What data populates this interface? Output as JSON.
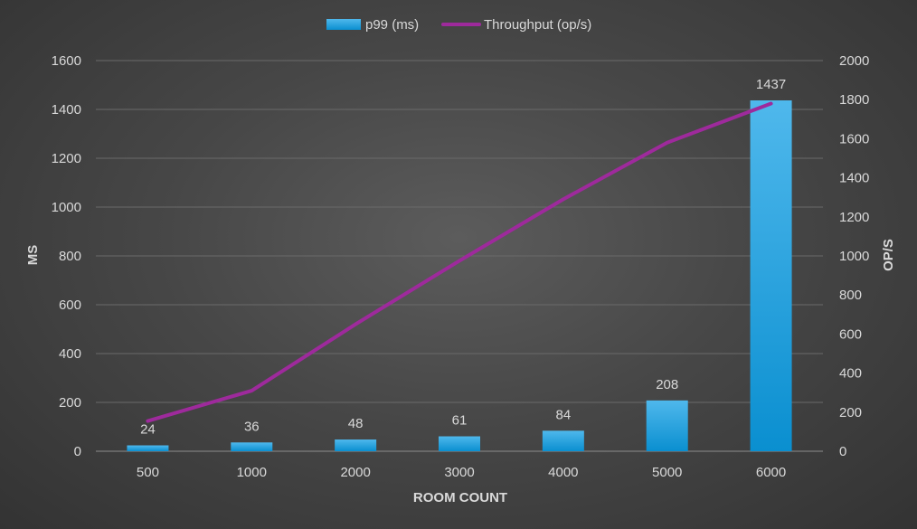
{
  "chart_data": {
    "type": "bar",
    "categories": [
      "500",
      "1000",
      "2000",
      "3000",
      "4000",
      "5000",
      "6000"
    ],
    "series": [
      {
        "name": "p99 (ms)",
        "type": "bar",
        "axis": "left",
        "color": "#1a9ad6",
        "values": [
          24,
          36,
          48,
          61,
          84,
          208,
          1437
        ],
        "data_labels": [
          "24",
          "36",
          "48",
          "61",
          "84",
          "208",
          "1437"
        ]
      },
      {
        "name": "Throughput (op/s)",
        "type": "line",
        "axis": "right",
        "color": "#9e2a9c",
        "values": [
          155,
          310,
          650,
          975,
          1290,
          1580,
          1780
        ]
      }
    ],
    "xlabel": "ROOM COUNT",
    "ylabel": "MS",
    "y2label": "OP/S",
    "ylim": [
      0,
      1600
    ],
    "yticks": [
      "0",
      "200",
      "400",
      "600",
      "800",
      "1000",
      "1200",
      "1400",
      "1600"
    ],
    "y2lim": [
      0,
      2000
    ],
    "y2ticks": [
      "0",
      "200",
      "400",
      "600",
      "800",
      "1000",
      "1200",
      "1400",
      "1600",
      "1800",
      "2000"
    ],
    "grid": true,
    "legend": "top-center"
  }
}
